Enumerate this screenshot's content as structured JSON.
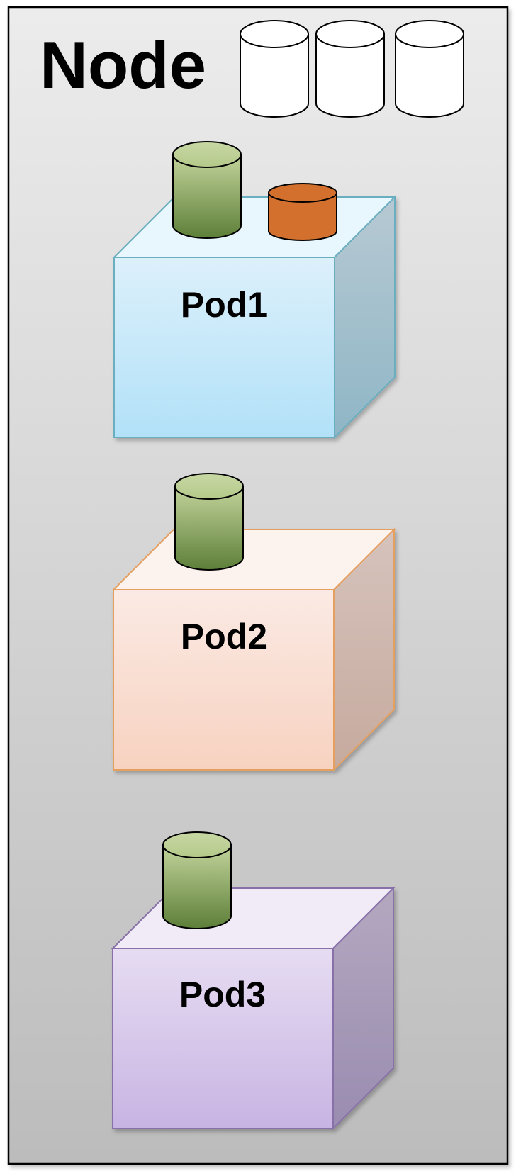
{
  "node": {
    "title": "Node",
    "background_top": "#ececec",
    "background_bottom": "#bcbcbc",
    "border_color": "#000000",
    "volumes": [
      {
        "name": "node-disk-1",
        "color": "#ffffff"
      },
      {
        "name": "node-disk-2",
        "color": "#ffffff"
      },
      {
        "name": "node-disk-3",
        "color": "#ffffff"
      }
    ]
  },
  "pods": [
    {
      "label": "Pod1",
      "front_top": "#dcf0fb",
      "front_bottom": "#b2e1f8",
      "top_color": "#e8f6fd",
      "side_top": "#b7c9d3",
      "side_bottom": "#8fb6c6",
      "stroke": "#6aaebf",
      "volumes": [
        {
          "name": "pod1-volume-green",
          "color": "green"
        },
        {
          "name": "pod1-volume-orange",
          "color": "orange"
        }
      ]
    },
    {
      "label": "Pod2",
      "front_top": "#fbeae4",
      "front_bottom": "#f7d2c0",
      "top_color": "#fcf2ee",
      "side_top": "#d6c3bc",
      "side_bottom": "#c6aa9e",
      "stroke": "#e5a060",
      "volumes": [
        {
          "name": "pod2-volume-green",
          "color": "green"
        }
      ]
    },
    {
      "label": "Pod3",
      "front_top": "#e6dcf2",
      "front_bottom": "#c8b4e3",
      "top_color": "#f0ebf7",
      "side_top": "#b4a8c0",
      "side_bottom": "#998cb0",
      "stroke": "#8870a8",
      "volumes": [
        {
          "name": "pod3-volume-green",
          "color": "green"
        }
      ]
    }
  ],
  "volume_colors": {
    "green_top": "#c3d49c",
    "green_bottom": "#5d7f38",
    "orange": "#d4702e"
  }
}
